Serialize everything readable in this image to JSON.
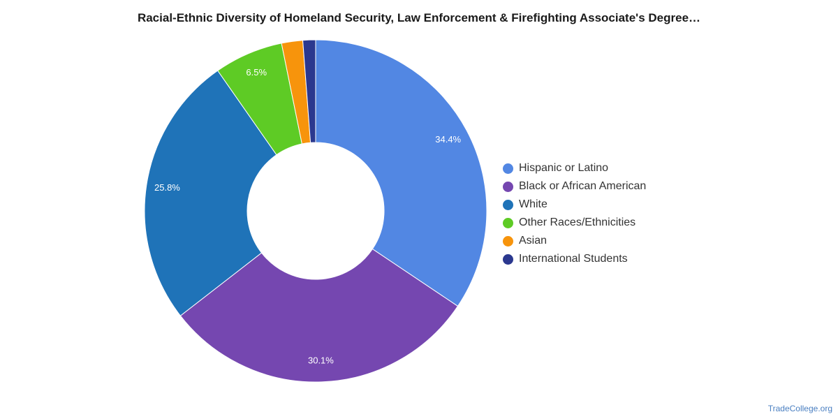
{
  "chart_data": {
    "type": "pie",
    "variant": "donut",
    "title": "Racial-Ethnic Diversity of Homeland Security, Law Enforcement & Firefighting Associate's Degree…",
    "slices": [
      {
        "label": "Hispanic or Latino",
        "value": 34.4,
        "display": "34.4%",
        "color": "#5287e3"
      },
      {
        "label": "Black or African American",
        "value": 30.1,
        "display": "30.1%",
        "color": "#7547b0"
      },
      {
        "label": "White",
        "value": 25.8,
        "display": "25.8%",
        "color": "#1f73b8"
      },
      {
        "label": "Other Races/Ethnicities",
        "value": 6.5,
        "display": "6.5%",
        "color": "#5ecb25"
      },
      {
        "label": "Asian",
        "value": 2.0,
        "display": "",
        "color": "#f7940c"
      },
      {
        "label": "International Students",
        "value": 1.2,
        "display": "",
        "color": "#2b388f"
      }
    ],
    "legend_position": "right"
  },
  "watermark": "TradeCollege.org"
}
